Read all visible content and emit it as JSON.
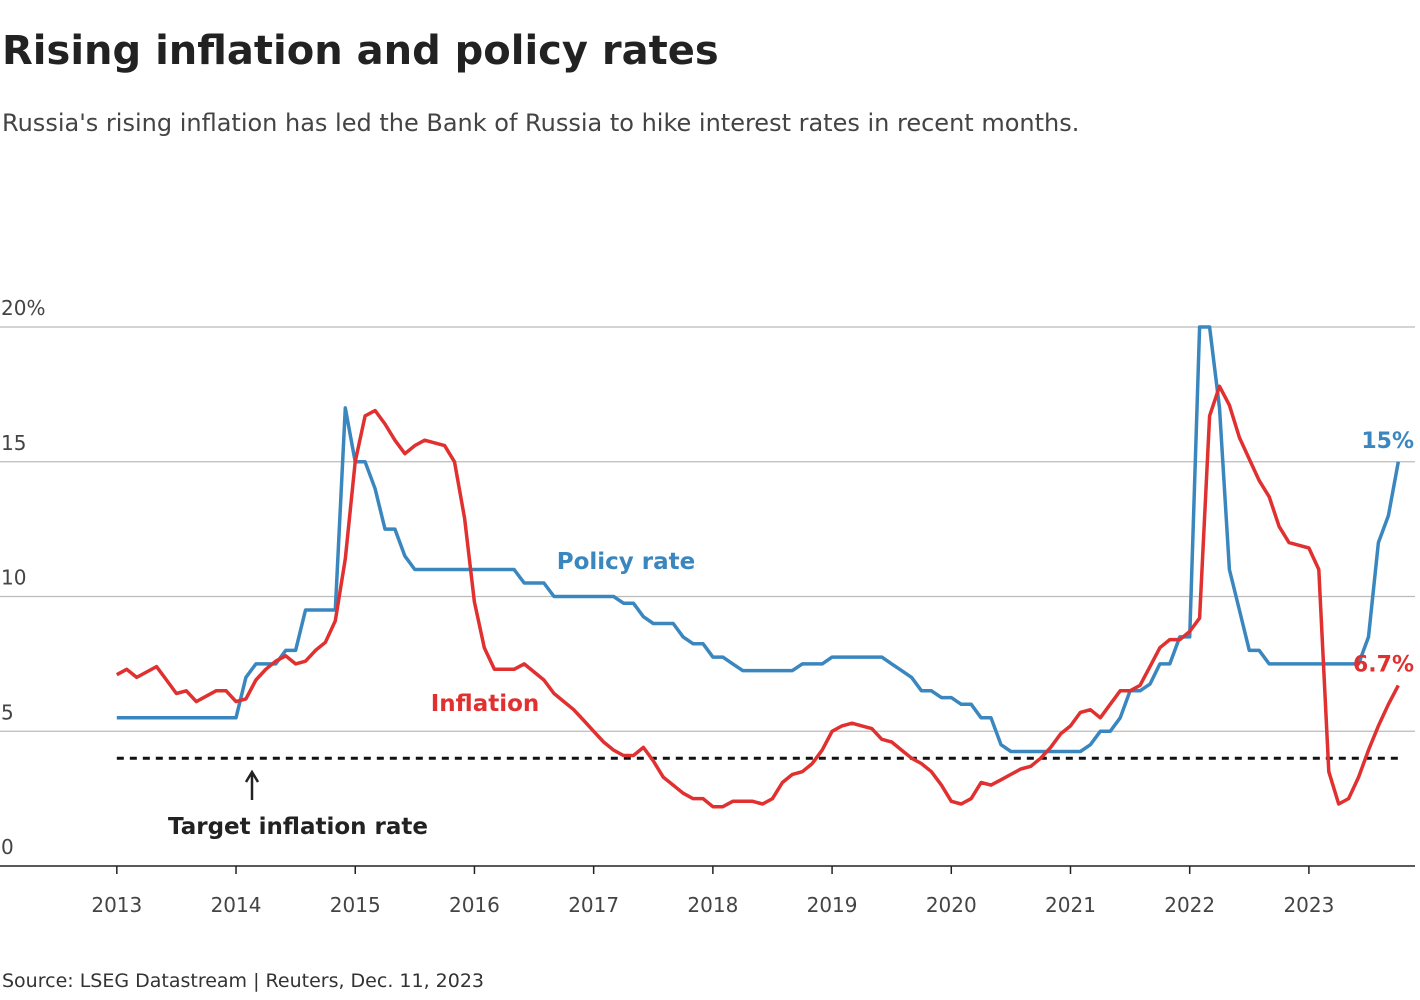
{
  "chart_data": {
    "type": "line",
    "title": "Rising inflation and policy rates",
    "subtitle": "Russia's rising inflation has led the Bank of Russia to hike interest rates in recent months.",
    "source": "Source: LSEG Datastream | Reuters, Dec. 11, 2023",
    "x": [
      2013,
      2013.083,
      2013.167,
      2013.25,
      2013.333,
      2013.417,
      2013.5,
      2013.583,
      2013.667,
      2013.75,
      2013.833,
      2013.917,
      2014,
      2014.083,
      2014.167,
      2014.25,
      2014.333,
      2014.417,
      2014.5,
      2014.583,
      2014.667,
      2014.75,
      2014.833,
      2014.917,
      2015,
      2015.083,
      2015.167,
      2015.25,
      2015.333,
      2015.417,
      2015.5,
      2015.583,
      2015.667,
      2015.75,
      2015.833,
      2015.917,
      2016,
      2016.083,
      2016.167,
      2016.25,
      2016.333,
      2016.417,
      2016.5,
      2016.583,
      2016.667,
      2016.75,
      2016.833,
      2016.917,
      2017,
      2017.083,
      2017.167,
      2017.25,
      2017.333,
      2017.417,
      2017.5,
      2017.583,
      2017.667,
      2017.75,
      2017.833,
      2017.917,
      2018,
      2018.083,
      2018.167,
      2018.25,
      2018.333,
      2018.417,
      2018.5,
      2018.583,
      2018.667,
      2018.75,
      2018.833,
      2018.917,
      2019,
      2019.083,
      2019.167,
      2019.25,
      2019.333,
      2019.417,
      2019.5,
      2019.583,
      2019.667,
      2019.75,
      2019.833,
      2019.917,
      2020,
      2020.083,
      2020.167,
      2020.25,
      2020.333,
      2020.417,
      2020.5,
      2020.583,
      2020.667,
      2020.75,
      2020.833,
      2020.917,
      2021,
      2021.083,
      2021.167,
      2021.25,
      2021.333,
      2021.417,
      2021.5,
      2021.583,
      2021.667,
      2021.75,
      2021.833,
      2021.917,
      2022,
      2022.083,
      2022.167,
      2022.25,
      2022.333,
      2022.417,
      2022.5,
      2022.583,
      2022.667,
      2022.75,
      2022.833,
      2022.917,
      2023,
      2023.083,
      2023.167,
      2023.25,
      2023.333,
      2023.417,
      2023.5,
      2023.583,
      2023.667,
      2023.75
    ],
    "series": [
      {
        "name": "Policy rate",
        "color": "#3a87c0",
        "end_label": "15%",
        "values": [
          5.5,
          5.5,
          5.5,
          5.5,
          5.5,
          5.5,
          5.5,
          5.5,
          5.5,
          5.5,
          5.5,
          5.5,
          5.5,
          7,
          7.5,
          7.5,
          7.5,
          8,
          8,
          9.5,
          9.5,
          9.5,
          9.5,
          17,
          15,
          15,
          14,
          12.5,
          12.5,
          11.5,
          11,
          11,
          11,
          11,
          11,
          11,
          11,
          11,
          11,
          11,
          11,
          10.5,
          10.5,
          10.5,
          10,
          10,
          10,
          10,
          10,
          10,
          10,
          9.75,
          9.75,
          9.25,
          9,
          9,
          9,
          8.5,
          8.25,
          8.25,
          7.75,
          7.75,
          7.5,
          7.25,
          7.25,
          7.25,
          7.25,
          7.25,
          7.25,
          7.5,
          7.5,
          7.5,
          7.75,
          7.75,
          7.75,
          7.75,
          7.75,
          7.75,
          7.5,
          7.25,
          7,
          6.5,
          6.5,
          6.25,
          6.25,
          6,
          6,
          5.5,
          5.5,
          4.5,
          4.25,
          4.25,
          4.25,
          4.25,
          4.25,
          4.25,
          4.25,
          4.25,
          4.5,
          5,
          5,
          5.5,
          6.5,
          6.5,
          6.75,
          7.5,
          7.5,
          8.5,
          8.5,
          20,
          20,
          17,
          11,
          9.5,
          8,
          8,
          7.5,
          7.5,
          7.5,
          7.5,
          7.5,
          7.5,
          7.5,
          7.5,
          7.5,
          7.5,
          8.5,
          12,
          13,
          15
        ]
      },
      {
        "name": "Inflation",
        "color": "#e03030",
        "end_label": "6.7%",
        "values": [
          7.1,
          7.3,
          7.0,
          7.2,
          7.4,
          6.9,
          6.4,
          6.5,
          6.1,
          6.3,
          6.5,
          6.5,
          6.1,
          6.2,
          6.9,
          7.3,
          7.6,
          7.8,
          7.5,
          7.6,
          8.0,
          8.3,
          9.1,
          11.4,
          15.0,
          16.7,
          16.9,
          16.4,
          15.8,
          15.3,
          15.6,
          15.8,
          15.7,
          15.6,
          15.0,
          12.9,
          9.8,
          8.1,
          7.3,
          7.3,
          7.3,
          7.5,
          7.2,
          6.9,
          6.4,
          6.1,
          5.8,
          5.4,
          5.0,
          4.6,
          4.3,
          4.1,
          4.1,
          4.4,
          3.9,
          3.3,
          3.0,
          2.7,
          2.5,
          2.5,
          2.2,
          2.2,
          2.4,
          2.4,
          2.4,
          2.3,
          2.5,
          3.1,
          3.4,
          3.5,
          3.8,
          4.3,
          5.0,
          5.2,
          5.3,
          5.2,
          5.1,
          4.7,
          4.6,
          4.3,
          4.0,
          3.8,
          3.5,
          3.0,
          2.4,
          2.3,
          2.5,
          3.1,
          3.0,
          3.2,
          3.4,
          3.6,
          3.7,
          4.0,
          4.4,
          4.9,
          5.2,
          5.7,
          5.8,
          5.5,
          6.0,
          6.5,
          6.5,
          6.7,
          7.4,
          8.1,
          8.4,
          8.4,
          8.7,
          9.2,
          16.7,
          17.8,
          17.1,
          15.9,
          15.1,
          14.3,
          13.7,
          12.6,
          12.0,
          11.9,
          11.8,
          11.0,
          3.5,
          2.3,
          2.5,
          3.3,
          4.3,
          5.2,
          6.0,
          6.7
        ]
      }
    ],
    "target_line": {
      "value": 4,
      "label": "Target inflation rate"
    },
    "xlim": [
      2012.02,
      2023.89
    ],
    "xticks": [
      2013,
      2014,
      2015,
      2016,
      2017,
      2018,
      2019,
      2020,
      2021,
      2022,
      2023
    ],
    "ylim": [
      0,
      20
    ],
    "yticks": [
      0,
      5,
      10,
      15,
      {
        "value": 20,
        "label": "20%"
      }
    ],
    "grid": true
  }
}
